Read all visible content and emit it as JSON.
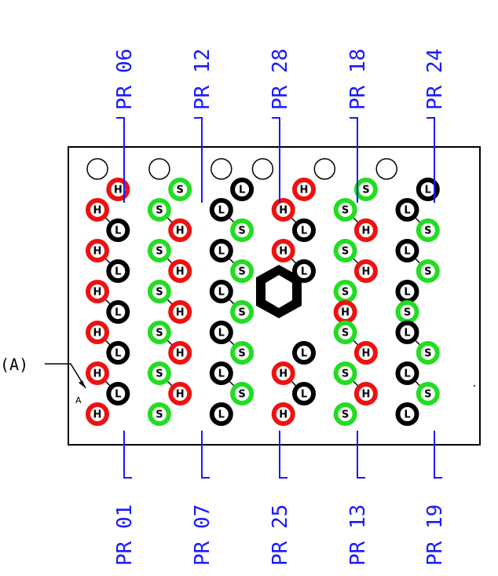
{
  "diagram": {
    "callout_text": "(A)",
    "corner_marker": "A",
    "top_labels": [
      "PR 06",
      "PR 12",
      "PR 28",
      "PR 18",
      "PR 24"
    ],
    "bottom_labels": [
      "PR 01",
      "PR 07",
      "PR 25",
      "PR 13",
      "PR 19"
    ],
    "pin_types": {
      "H": {
        "text": "H",
        "ring": "#ee1111",
        "inner": "#ffffff",
        "textcolor": "#000000"
      },
      "L": {
        "text": "L",
        "ring": "#000000",
        "inner": "#ffffff",
        "textcolor": "#000000"
      },
      "S": {
        "text": "S",
        "ring": "#22dd22",
        "inner": "#ffffff",
        "textcolor": "#000000"
      }
    },
    "pin_grid": [
      "O..O..O.O..O..O..",
      ".H..S..L..H..S..L",
      "H..S..L..H..S..L.",
      ".L..H..S..L..H..S",
      "H..S..L..H..S..L.",
      ".L..H..S..L..H..S",
      "H..S..L..C..S..L.",
      ".L..H..S.C..H..S",
      "H..S..L..C..S..L.",
      ".L..H..S..L..H..S",
      "H..S..L..H..S..L.",
      ".L..H..S..L..H..S",
      "H..S..L..H..S..L."
    ]
  }
}
